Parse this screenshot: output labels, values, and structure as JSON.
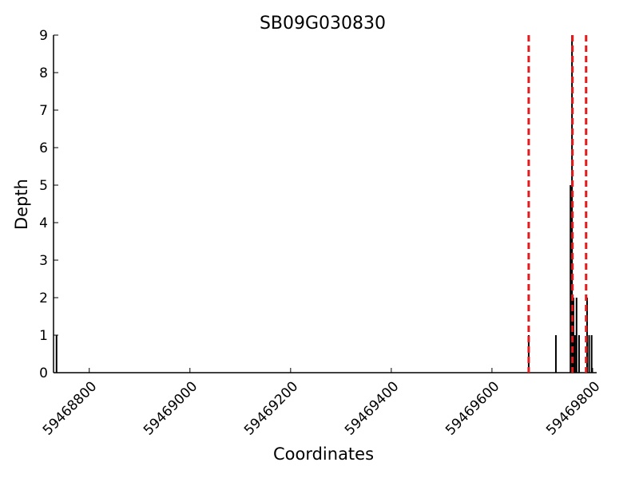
{
  "chart_data": {
    "type": "bar",
    "title": "SB09G030830",
    "x_label": "Coordinates",
    "y_label": "Depth",
    "x": [
      59468735,
      59469673,
      59469727,
      59469756,
      59469759,
      59469762,
      59469765,
      59469768,
      59469773,
      59469789,
      59469793,
      59469798
    ],
    "values": [
      1,
      1,
      1,
      5,
      9,
      2,
      1,
      2,
      1,
      2,
      1,
      1
    ],
    "color": "#000000",
    "vlines": [
      59469673,
      59469760,
      59469787
    ],
    "vline_color": "#e41a1c",
    "xlim": [
      59468729,
      59469808
    ],
    "xticks": [
      59468800,
      59469000,
      59469200,
      59469400,
      59469600,
      59469800
    ],
    "ylim": [
      0,
      9
    ],
    "yticks": [
      0,
      1,
      2,
      3,
      4,
      5,
      6,
      7,
      8,
      9
    ]
  }
}
